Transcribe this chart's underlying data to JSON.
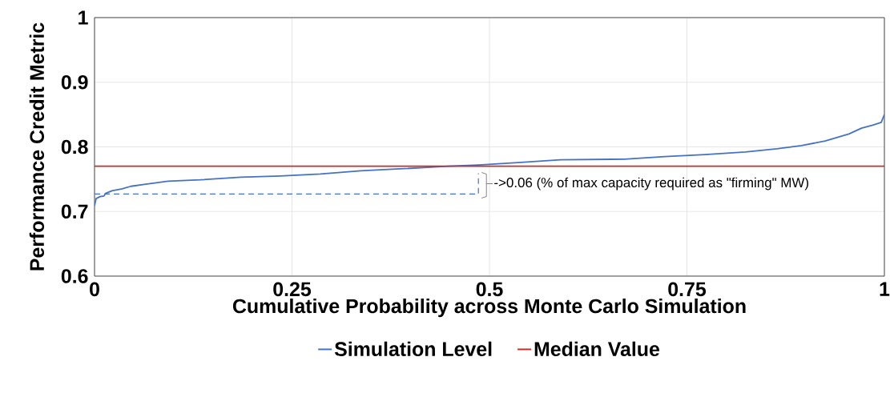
{
  "chart_data": {
    "type": "line",
    "xlabel": "Cumulative Probability across Monte Carlo Simulation",
    "ylabel": "Performance Credit Metric",
    "xlim": [
      0,
      1
    ],
    "ylim": [
      0.6,
      1
    ],
    "xticks": [
      0,
      0.25,
      0.5,
      0.75,
      1
    ],
    "yticks": [
      0.6,
      0.7,
      0.8,
      0.9,
      1
    ],
    "grid": true,
    "legend": "bottom",
    "line_style": "solid",
    "series": [
      {
        "name": "Simulation Level",
        "color": "#4472c4",
        "x": [
          0,
          0.002,
          0.007,
          0.012,
          0.014,
          0.022,
          0.035,
          0.046,
          0.063,
          0.093,
          0.134,
          0.185,
          0.235,
          0.286,
          0.337,
          0.387,
          0.448,
          0.486,
          0.54,
          0.59,
          0.671,
          0.722,
          0.773,
          0.824,
          0.864,
          0.895,
          0.925,
          0.955,
          0.971,
          0.986,
          0.996,
          1.0
        ],
        "values": [
          0.709,
          0.72,
          0.723,
          0.724,
          0.728,
          0.732,
          0.735,
          0.739,
          0.742,
          0.747,
          0.749,
          0.753,
          0.755,
          0.758,
          0.763,
          0.766,
          0.77,
          0.772,
          0.776,
          0.78,
          0.781,
          0.785,
          0.788,
          0.792,
          0.797,
          0.802,
          0.809,
          0.82,
          0.829,
          0.834,
          0.838,
          0.85
        ]
      },
      {
        "name": "Median Value",
        "color": "#c0312c",
        "x": [
          0,
          1
        ],
        "values": [
          0.77,
          0.77
        ]
      },
      {
        "color": "#4472c4",
        "line_style": "dashed",
        "x": [
          0,
          0.486,
          0.486
        ],
        "values": [
          0.727,
          0.727,
          0.759
        ]
      }
    ],
    "annotations": [
      "->0.06 (% of max capacity required as \"firming\" MW)"
    ]
  }
}
